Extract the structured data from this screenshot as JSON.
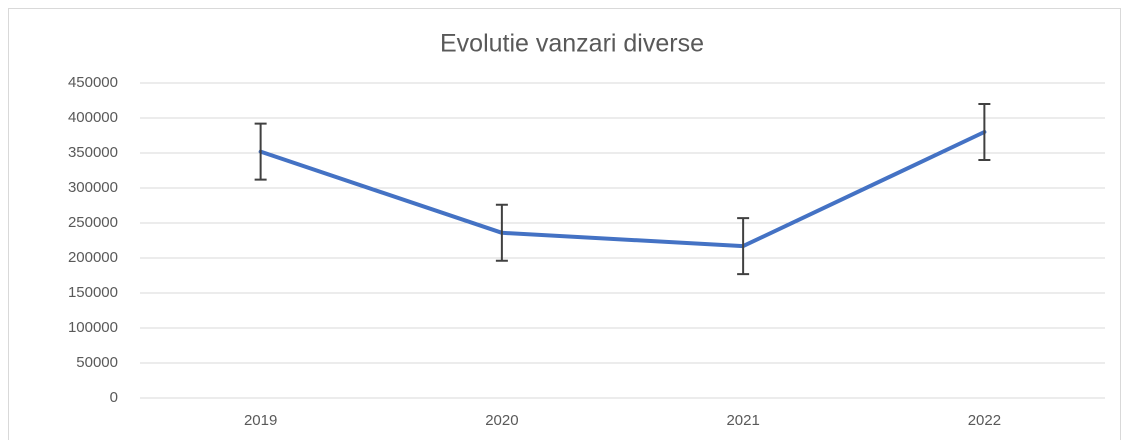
{
  "chart_data": {
    "type": "line",
    "title": "Evolutie vanzari diverse",
    "categories": [
      "2019",
      "2020",
      "2021",
      "2022"
    ],
    "values": [
      352000,
      236000,
      217000,
      380000
    ],
    "errors": [
      40000,
      40000,
      40000,
      40000
    ],
    "color": "#4472c4",
    "ylim": [
      0,
      450000
    ],
    "yticks": [
      0,
      50000,
      100000,
      150000,
      200000,
      250000,
      300000,
      350000,
      400000,
      450000
    ],
    "grid": true
  }
}
